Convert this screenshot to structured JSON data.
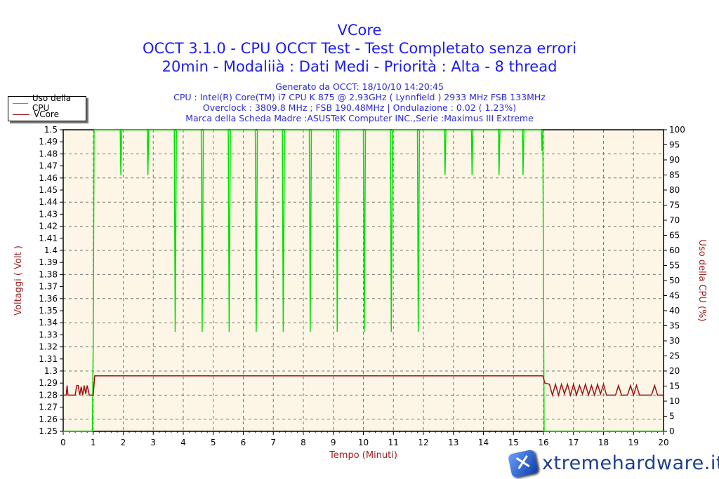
{
  "chart_data": {
    "type": "line",
    "title": "VCore",
    "subtitle_lines": [
      "OCCT 3.1.0 - CPU OCCT Test - Test Completato senza errori",
      "20min - Modaliià : Dati Medi - Priorità : Alta - 8 thread"
    ],
    "info_lines": [
      "Generato da OCCT: 18/10/10 14:20:45",
      "CPU : Intel(R) Core(TM) i7 CPU K 875 @ 2.93GHz ( Lynnfield ) 2933 MHz FSB 133MHz",
      "Overclock : 3809.8 MHz ; FSB 190.48MHz | Ondulazione : 0.02 ( 1.23%)",
      "Marca della Scheda Madre :ASUSTeK Computer INC.,Serie :Maximus III Extreme"
    ],
    "xlabel": "Tempo (Minuti)",
    "ylabel": "Voltaggi ( Volt )",
    "y2label": "Uso della CPU (%)",
    "xlim": [
      0,
      20
    ],
    "ylim": [
      1.25,
      1.5
    ],
    "y2lim": [
      0,
      100
    ],
    "xticks": [
      "0",
      "1",
      "2",
      "3",
      "4",
      "5",
      "6",
      "7",
      "8",
      "9",
      "10",
      "11",
      "12",
      "13",
      "14",
      "15",
      "16",
      "17",
      "18",
      "19",
      "20"
    ],
    "yticks": [
      "1.25",
      "1.26",
      "1.27",
      "1.28",
      "1.29",
      "1.3",
      "1.31",
      "1.32",
      "1.33",
      "1.34",
      "1.35",
      "1.36",
      "1.37",
      "1.38",
      "1.39",
      "1.4",
      "1.41",
      "1.42",
      "1.43",
      "1.44",
      "1.45",
      "1.46",
      "1.47",
      "1.48",
      "1.49",
      "1.5"
    ],
    "y2ticks": [
      "0",
      "5",
      "10",
      "15",
      "20",
      "25",
      "30",
      "35",
      "40",
      "45",
      "50",
      "55",
      "60",
      "65",
      "70",
      "75",
      "80",
      "85",
      "90",
      "95",
      "100"
    ],
    "grid": true,
    "legend_position": "top-left",
    "colors": {
      "cpu": "#00e000",
      "vcore": "#a01010",
      "plot_bg": "#fdf6e6",
      "title": "#1c1cf0",
      "axis_label": "#a02020"
    },
    "series": [
      {
        "name": "Uso della CPU",
        "axis": "right",
        "points": [
          [
            0,
            0
          ],
          [
            0.97,
            0
          ],
          [
            1.0,
            30
          ],
          [
            1.03,
            100
          ],
          [
            1.9,
            100
          ],
          [
            1.92,
            85
          ],
          [
            1.95,
            100
          ],
          [
            2.8,
            100
          ],
          [
            2.82,
            85
          ],
          [
            2.85,
            100
          ],
          [
            3.7,
            100
          ],
          [
            3.73,
            33
          ],
          [
            3.77,
            100
          ],
          [
            4.6,
            100
          ],
          [
            4.63,
            33
          ],
          [
            4.67,
            100
          ],
          [
            5.5,
            100
          ],
          [
            5.53,
            33
          ],
          [
            5.57,
            100
          ],
          [
            6.4,
            100
          ],
          [
            6.43,
            33
          ],
          [
            6.47,
            100
          ],
          [
            7.3,
            100
          ],
          [
            7.33,
            33
          ],
          [
            7.37,
            100
          ],
          [
            8.2,
            100
          ],
          [
            8.23,
            33
          ],
          [
            8.27,
            100
          ],
          [
            9.1,
            100
          ],
          [
            9.13,
            33
          ],
          [
            9.17,
            100
          ],
          [
            10.0,
            100
          ],
          [
            10.03,
            33
          ],
          [
            10.07,
            100
          ],
          [
            10.9,
            100
          ],
          [
            10.93,
            33
          ],
          [
            10.97,
            100
          ],
          [
            11.8,
            100
          ],
          [
            11.83,
            33
          ],
          [
            11.87,
            100
          ],
          [
            12.7,
            100
          ],
          [
            12.72,
            85
          ],
          [
            12.75,
            100
          ],
          [
            13.6,
            100
          ],
          [
            13.62,
            85
          ],
          [
            13.65,
            100
          ],
          [
            14.5,
            100
          ],
          [
            14.52,
            85
          ],
          [
            14.55,
            100
          ],
          [
            15.3,
            100
          ],
          [
            15.32,
            85
          ],
          [
            15.35,
            100
          ],
          [
            15.93,
            100
          ],
          [
            15.95,
            93
          ],
          [
            15.98,
            100
          ],
          [
            16.02,
            0
          ],
          [
            20,
            0
          ]
        ]
      },
      {
        "name": "VCore",
        "axis": "left",
        "points": [
          [
            0,
            1.28
          ],
          [
            0.1,
            1.28
          ],
          [
            0.13,
            1.288
          ],
          [
            0.16,
            1.28
          ],
          [
            0.4,
            1.28
          ],
          [
            0.45,
            1.288
          ],
          [
            0.5,
            1.288
          ],
          [
            0.55,
            1.28
          ],
          [
            0.6,
            1.287
          ],
          [
            0.65,
            1.28
          ],
          [
            0.7,
            1.288
          ],
          [
            0.75,
            1.281
          ],
          [
            0.8,
            1.288
          ],
          [
            0.87,
            1.28
          ],
          [
            1.0,
            1.28
          ],
          [
            1.05,
            1.296
          ],
          [
            15.98,
            1.296
          ],
          [
            16.05,
            1.29
          ],
          [
            16.2,
            1.289
          ],
          [
            16.3,
            1.28
          ],
          [
            16.4,
            1.289
          ],
          [
            16.5,
            1.28
          ],
          [
            16.6,
            1.289
          ],
          [
            16.7,
            1.281
          ],
          [
            16.8,
            1.289
          ],
          [
            16.9,
            1.28
          ],
          [
            17.0,
            1.289
          ],
          [
            17.1,
            1.28
          ],
          [
            17.2,
            1.288
          ],
          [
            17.3,
            1.281
          ],
          [
            17.4,
            1.289
          ],
          [
            17.5,
            1.28
          ],
          [
            17.6,
            1.288
          ],
          [
            17.7,
            1.28
          ],
          [
            17.8,
            1.289
          ],
          [
            17.9,
            1.281
          ],
          [
            18.0,
            1.289
          ],
          [
            18.1,
            1.28
          ],
          [
            18.4,
            1.28
          ],
          [
            18.5,
            1.288
          ],
          [
            18.6,
            1.28
          ],
          [
            18.8,
            1.28
          ],
          [
            18.9,
            1.288
          ],
          [
            19.0,
            1.28
          ],
          [
            19.1,
            1.288
          ],
          [
            19.2,
            1.28
          ],
          [
            19.6,
            1.28
          ],
          [
            19.7,
            1.288
          ],
          [
            19.8,
            1.28
          ],
          [
            20,
            1.28
          ]
        ]
      }
    ]
  },
  "watermark": "xtremehardware.it"
}
